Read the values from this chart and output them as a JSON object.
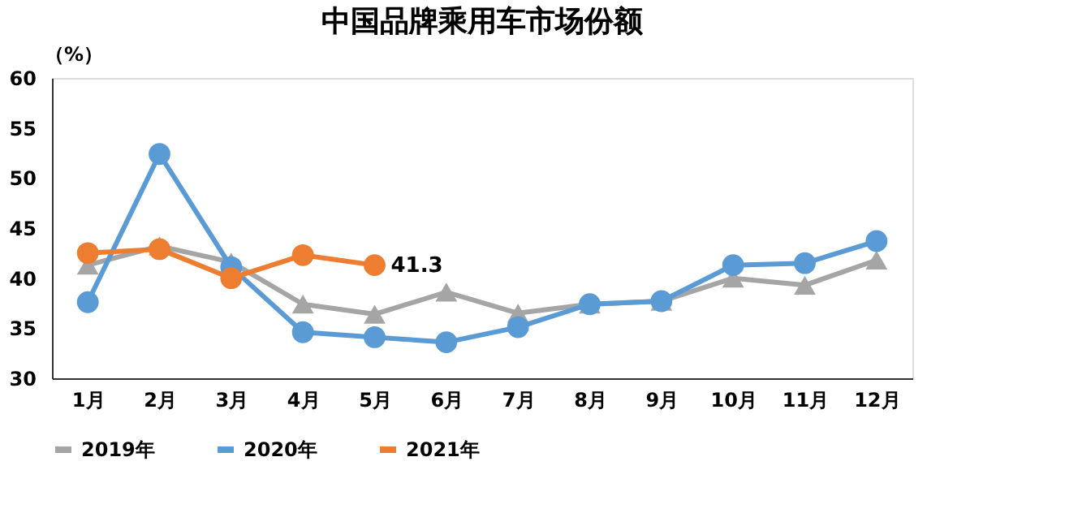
{
  "chart_data": {
    "type": "line",
    "title": "中国品牌乘用车市场份额",
    "ylabel": "（%）",
    "categories": [
      "1月",
      "2月",
      "3月",
      "4月",
      "5月",
      "6月",
      "7月",
      "8月",
      "9月",
      "10月",
      "11月",
      "12月"
    ],
    "series": [
      {
        "name": "2019年",
        "color": "#a5a5a5",
        "marker": "triangle",
        "values": [
          41.3,
          43.2,
          41.6,
          37.4,
          36.4,
          38.6,
          36.5,
          37.4,
          37.7,
          40.0,
          39.3,
          41.8
        ]
      },
      {
        "name": "2020年",
        "color": "#5b9bd5",
        "marker": "circle",
        "values": [
          37.6,
          52.4,
          41.1,
          34.6,
          34.1,
          33.6,
          35.1,
          37.4,
          37.7,
          41.3,
          41.5,
          43.7
        ]
      },
      {
        "name": "2021年",
        "color": "#ed7d31",
        "marker": "circle",
        "values": [
          42.5,
          42.9,
          40.0,
          42.3,
          41.3,
          null,
          null,
          null,
          null,
          null,
          null,
          null
        ],
        "value_labels": [
          null,
          null,
          null,
          null,
          "41.3",
          null,
          null,
          null,
          null,
          null,
          null,
          null
        ]
      }
    ],
    "ylim": [
      30,
      60
    ],
    "yticks": [
      30,
      35,
      40,
      45,
      50,
      55,
      60
    ],
    "grid": false,
    "legend": "bottom"
  }
}
